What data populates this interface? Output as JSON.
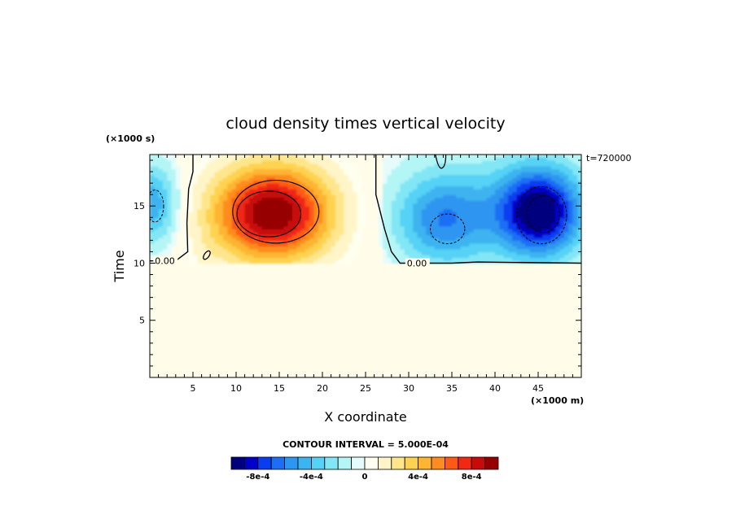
{
  "chart_data": {
    "type": "heatmap",
    "title": "cloud density times vertical velocity",
    "xlabel": "X coordinate",
    "ylabel": "Time",
    "x_unit": "(×1000 m)",
    "y_unit": "(×1000 s)",
    "time_stamp": "t=720000",
    "contour_interval_label": "CONTOUR INTERVAL = 5.000E-04",
    "xlim": [
      0,
      50
    ],
    "ylim": [
      0,
      19.5
    ],
    "x_ticks": [
      5,
      10,
      15,
      20,
      25,
      30,
      35,
      40,
      45
    ],
    "y_ticks": [
      5,
      10,
      15
    ],
    "zero_contour_label": "0.00",
    "value_range": [
      -0.001,
      0.001
    ],
    "colorbar": {
      "ticks": [
        {
          "value": -0.0008,
          "label": "-8e-4"
        },
        {
          "value": -0.0004,
          "label": "-4e-4"
        },
        {
          "value": 0,
          "label": "0"
        },
        {
          "value": 0.0004,
          "label": "4e-4"
        },
        {
          "value": 0.0008,
          "label": "8e-4"
        }
      ],
      "colors": [
        "#00007f",
        "#0000c8",
        "#0a3cf0",
        "#1e6ef5",
        "#2d96f0",
        "#3cb4f0",
        "#55d2f5",
        "#82e6f5",
        "#b4f5f5",
        "#e6fcfc",
        "#fffff0",
        "#fff5c8",
        "#ffe68c",
        "#ffd250",
        "#ffb432",
        "#ff8c1e",
        "#ff5a14",
        "#f02814",
        "#c80a0a",
        "#960000"
      ]
    },
    "features": [
      {
        "name": "positive-core",
        "x": 13.5,
        "y": 14.2,
        "peak": 0.001
      },
      {
        "name": "negative-core-1",
        "x": 0.5,
        "y": 15.0,
        "peak": -0.00045
      },
      {
        "name": "negative-core-2",
        "x": 34.0,
        "y": 13.5,
        "peak": -0.00045
      },
      {
        "name": "negative-core-3",
        "x": 45.0,
        "y": 14.2,
        "peak": -0.0009
      }
    ],
    "zero_contour": {
      "left_boundary": [
        [
          5.0,
          19.5
        ],
        [
          5.0,
          18.0
        ],
        [
          4.5,
          16.5
        ],
        [
          4.3,
          13.5
        ],
        [
          4.4,
          11.0
        ],
        [
          3.0,
          10.2
        ],
        [
          0,
          10.2
        ]
      ],
      "right_boundary": [
        [
          26.2,
          19.5
        ],
        [
          26.2,
          16.0
        ],
        [
          27.2,
          13.0
        ],
        [
          28.0,
          11.0
        ],
        [
          29.0,
          10.0
        ],
        [
          35.0,
          10.0
        ],
        [
          38.0,
          10.1
        ],
        [
          50.0,
          10.0
        ]
      ],
      "small_loop_left": {
        "x": 6.6,
        "y": 10.7
      },
      "small_loop_top": {
        "x": 33.7,
        "y": 19.0
      }
    },
    "lower_region": "zero (0 to 10)"
  }
}
